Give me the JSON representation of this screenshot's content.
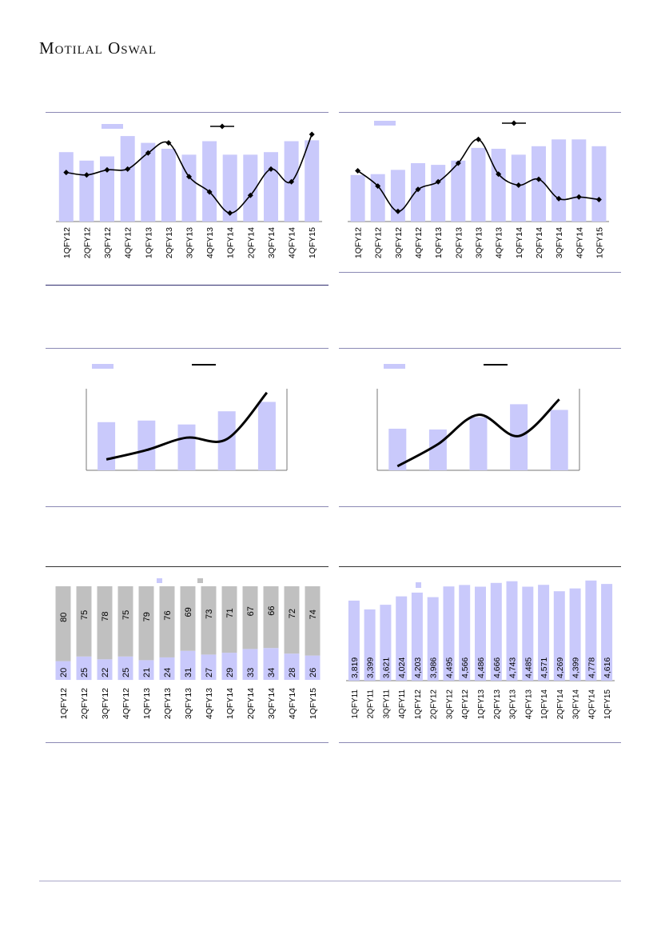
{
  "header": {
    "brand": "Motilal Oswal"
  },
  "colors": {
    "bar": "#c9c9fb",
    "line": "#000000",
    "stack_top": "#c0c0c0",
    "axis": "#777777",
    "rule": "#8b89b4"
  },
  "chart_data": [
    {
      "id": "chart1",
      "type": "bar+line",
      "categories": [
        "1QFY12",
        "2QFY12",
        "3QFY12",
        "4QFY12",
        "1QFY13",
        "2QFY13",
        "3QFY13",
        "4QFY13",
        "1QFY14",
        "2QFY14",
        "3QFY14",
        "4QFY14",
        "1QFY15"
      ],
      "series": [
        {
          "type": "bar",
          "values": [
            82,
            72,
            77,
            101,
            93,
            86,
            79,
            95,
            79,
            79,
            82,
            95,
            96
          ]
        },
        {
          "type": "line",
          "values": [
            58,
            55,
            61,
            62,
            81,
            93,
            53,
            35,
            10,
            31,
            62,
            47,
            103
          ]
        }
      ],
      "ylim": [
        0,
        120
      ],
      "legend": "top",
      "markers": true
    },
    {
      "id": "chart2",
      "type": "bar+line",
      "categories": [
        "1QFY12",
        "2QFY12",
        "3QFY12",
        "4QFY12",
        "1QFY13",
        "2QFY13",
        "3QFY13",
        "4QFY13",
        "1QFY14",
        "2QFY14",
        "3QFY14",
        "4QFY14",
        "1QFY15"
      ],
      "series": [
        {
          "type": "bar",
          "values": [
            55,
            56,
            61,
            69,
            67,
            72,
            87,
            86,
            79,
            89,
            97,
            97,
            89
          ]
        },
        {
          "type": "line",
          "values": [
            60,
            42,
            12,
            38,
            47,
            69,
            97,
            56,
            43,
            50,
            27,
            29,
            26
          ]
        }
      ],
      "ylim": [
        0,
        120
      ],
      "legend": "top",
      "markers": true
    },
    {
      "id": "chart3",
      "type": "bar+line",
      "categories": [
        "",
        "",
        "",
        "",
        ""
      ],
      "series": [
        {
          "type": "bar",
          "values": [
            62,
            64,
            59,
            76,
            88
          ]
        },
        {
          "type": "line",
          "values": [
            14,
            26,
            42,
            40,
            100
          ]
        }
      ],
      "ylim": [
        0,
        105
      ],
      "legend": "top",
      "markers": false
    },
    {
      "id": "chart4",
      "type": "bar+line",
      "categories": [
        "",
        "",
        "",
        "",
        ""
      ],
      "series": [
        {
          "type": "bar",
          "values": [
            51,
            50,
            65,
            81,
            74
          ]
        },
        {
          "type": "line",
          "values": [
            5,
            32,
            68,
            42,
            87
          ]
        }
      ],
      "ylim": [
        0,
        100
      ],
      "legend": "top",
      "markers": false
    },
    {
      "id": "chart5",
      "type": "stacked-bar",
      "categories": [
        "1QFY12",
        "2QFY12",
        "3QFY12",
        "4QFY12",
        "1QFY13",
        "2QFY13",
        "3QFY13",
        "4QFY13",
        "1QFY14",
        "2QFY14",
        "3QFY14",
        "4QFY14",
        "1QFY15"
      ],
      "series": [
        {
          "type": "bar",
          "values": [
            20,
            25,
            22,
            25,
            21,
            24,
            31,
            27,
            29,
            33,
            34,
            28,
            26
          ]
        },
        {
          "type": "bar",
          "values": [
            80,
            75,
            78,
            75,
            79,
            76,
            69,
            73,
            71,
            67,
            66,
            72,
            74
          ]
        }
      ],
      "ylim": [
        0,
        100
      ],
      "legend": "top"
    },
    {
      "id": "chart6",
      "type": "bar",
      "categories": [
        "1QFY11",
        "2QFY11",
        "3QFY11",
        "4QFY11",
        "1QFY12",
        "2QFY12",
        "3QFY12",
        "4QFY12",
        "1QFY13",
        "2QFY13",
        "3QFY13",
        "4QFY13",
        "1QFY14",
        "2QFY14",
        "3QFY14",
        "4QFY14",
        "1QFY15"
      ],
      "series": [
        {
          "type": "bar",
          "values": [
            3819,
            3399,
            3621,
            4024,
            4203,
            3986,
            4495,
            4566,
            4486,
            4666,
            4743,
            4485,
            4571,
            4269,
            4399,
            4778,
            4616
          ]
        }
      ],
      "labels": [
        "3,819",
        "3,399",
        "3,621",
        "4,024",
        "4,203",
        "3,986",
        "4,495",
        "4,566",
        "4,486",
        "4,666",
        "4,743",
        "4,485",
        "4,571",
        "4,269",
        "4,399",
        "4,778",
        "4,616"
      ],
      "ylim": [
        0,
        5000
      ],
      "legend": "top"
    }
  ]
}
